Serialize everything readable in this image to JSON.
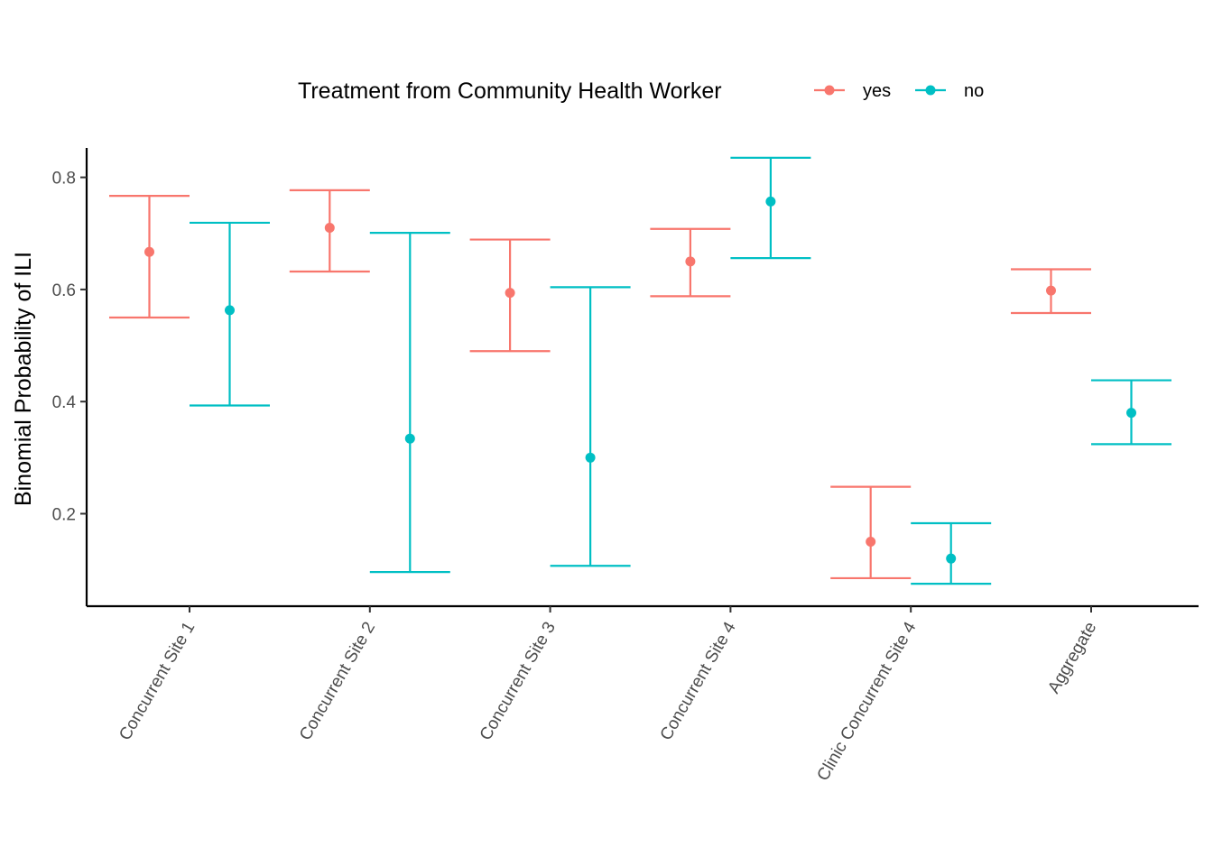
{
  "chart_data": {
    "type": "errorbar",
    "xlabel": "",
    "ylabel": "Binomial Probability of ILI",
    "ylim": [
      0.035,
      0.875
    ],
    "yticks": [
      0.2,
      0.4,
      0.6,
      0.8
    ],
    "ytick_labels": [
      "0.2",
      "0.4",
      "0.6",
      "0.8"
    ],
    "categories": [
      "Concurrent Site 1",
      "Concurrent Site 2",
      "Concurrent Site 3",
      "Concurrent Site 4",
      "Clinic Concurrent Site 4",
      "Aggregate"
    ],
    "legend": {
      "title": "Treatment from Community Health Worker",
      "position": "top"
    },
    "grid": false,
    "series": [
      {
        "name": "yes",
        "color": "#F8766D",
        "values": [
          0.667,
          0.71,
          0.594,
          0.65,
          0.15,
          0.598
        ],
        "lower": [
          0.55,
          0.632,
          0.49,
          0.588,
          0.085,
          0.558
        ],
        "upper": [
          0.767,
          0.777,
          0.689,
          0.708,
          0.248,
          0.636
        ]
      },
      {
        "name": "no",
        "color": "#00BFC4",
        "values": [
          0.563,
          0.334,
          0.3,
          0.757,
          0.12,
          0.38
        ],
        "lower": [
          0.393,
          0.096,
          0.107,
          0.656,
          0.075,
          0.324
        ],
        "upper": [
          0.719,
          0.701,
          0.604,
          0.835,
          0.183,
          0.438
        ]
      }
    ]
  }
}
